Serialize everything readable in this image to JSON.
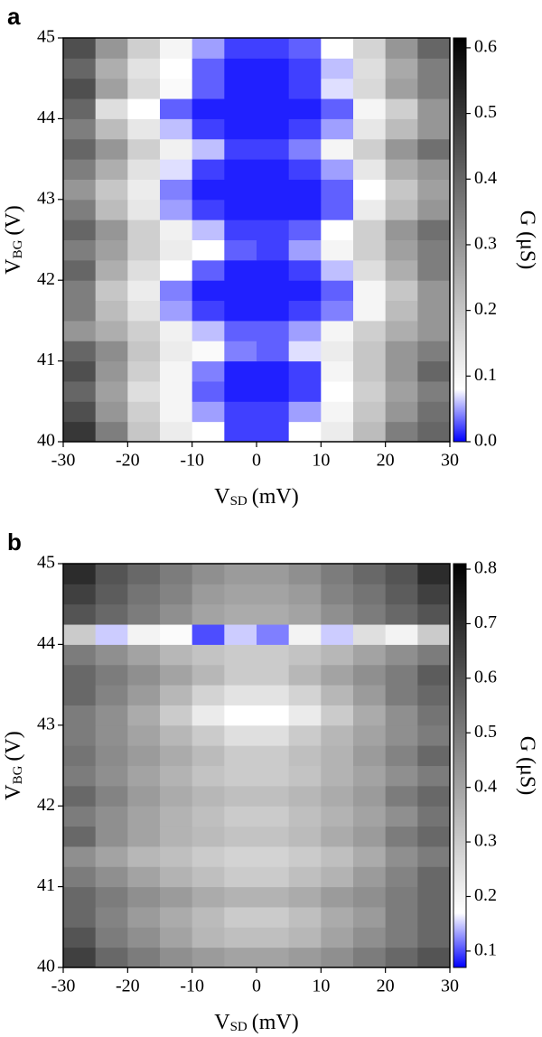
{
  "chart_data": [
    {
      "type": "heatmap",
      "label": "a",
      "xlabel": {
        "main": "V",
        "sub": "SD",
        "unit": "(mV)"
      },
      "ylabel": {
        "main": "V",
        "sub": "BG",
        "unit": "(V)"
      },
      "colorbar_label": "G (μS)",
      "xlim": [
        -30,
        30
      ],
      "xticks": [
        -30,
        -20,
        -10,
        0,
        10,
        20,
        30
      ],
      "ylim": [
        40,
        45
      ],
      "yticks": [
        40,
        41,
        42,
        43,
        44,
        45
      ],
      "clim": [
        0,
        0.615
      ],
      "cticks": [
        {
          "value": 0,
          "label": "0.0"
        },
        0.1,
        0.2,
        0.3,
        0.4,
        0.5,
        0.6
      ],
      "colorscale": [
        {
          "value": 0,
          "color": "#0000ff"
        },
        {
          "value": 0.08,
          "color": "#ffffff"
        },
        {
          "value": 0.615,
          "color": "#000000"
        }
      ],
      "z": [
        [
          0.5,
          0.35,
          0.2,
          0.12,
          0.08,
          0.02,
          0.02,
          0.08,
          0.12,
          0.22,
          0.35,
          0.4
        ],
        [
          0.45,
          0.3,
          0.18,
          0.1,
          0.05,
          0.02,
          0.02,
          0.05,
          0.1,
          0.2,
          0.3,
          0.38
        ],
        [
          0.4,
          0.28,
          0.15,
          0.1,
          0.03,
          0.01,
          0.01,
          0.02,
          0.08,
          0.18,
          0.28,
          0.35
        ],
        [
          0.45,
          0.3,
          0.18,
          0.1,
          0.04,
          0.01,
          0.01,
          0.02,
          0.1,
          0.2,
          0.3,
          0.4
        ],
        [
          0.4,
          0.32,
          0.2,
          0.12,
          0.09,
          0.04,
          0.03,
          0.07,
          0.12,
          0.2,
          0.3,
          0.35
        ],
        [
          0.3,
          0.25,
          0.18,
          0.11,
          0.06,
          0.03,
          0.03,
          0.05,
          0.1,
          0.18,
          0.25,
          0.3
        ],
        [
          0.35,
          0.22,
          0.14,
          0.05,
          0.02,
          0.01,
          0.01,
          0.02,
          0.04,
          0.1,
          0.22,
          0.3
        ],
        [
          0.35,
          0.2,
          0.12,
          0.04,
          0.01,
          0.01,
          0.01,
          0.01,
          0.03,
          0.1,
          0.2,
          0.3
        ],
        [
          0.4,
          0.25,
          0.15,
          0.08,
          0.03,
          0.01,
          0.01,
          0.02,
          0.06,
          0.15,
          0.25,
          0.35
        ],
        [
          0.35,
          0.28,
          0.18,
          0.12,
          0.08,
          0.03,
          0.02,
          0.05,
          0.1,
          0.18,
          0.28,
          0.35
        ],
        [
          0.4,
          0.3,
          0.18,
          0.11,
          0.06,
          0.02,
          0.02,
          0.03,
          0.08,
          0.18,
          0.3,
          0.38
        ],
        [
          0.35,
          0.22,
          0.13,
          0.05,
          0.02,
          0.01,
          0.01,
          0.01,
          0.03,
          0.12,
          0.22,
          0.3
        ],
        [
          0.3,
          0.2,
          0.12,
          0.04,
          0.01,
          0.01,
          0.01,
          0.01,
          0.03,
          0.08,
          0.2,
          0.28
        ],
        [
          0.35,
          0.25,
          0.14,
          0.07,
          0.02,
          0.01,
          0.01,
          0.02,
          0.05,
          0.13,
          0.25,
          0.3
        ],
        [
          0.4,
          0.3,
          0.18,
          0.11,
          0.06,
          0.02,
          0.02,
          0.04,
          0.1,
          0.18,
          0.3,
          0.38
        ],
        [
          0.35,
          0.22,
          0.13,
          0.06,
          0.02,
          0.01,
          0.01,
          0.02,
          0.05,
          0.13,
          0.22,
          0.3
        ],
        [
          0.4,
          0.15,
          0.08,
          0.03,
          0.01,
          0.01,
          0.01,
          0.01,
          0.03,
          0.1,
          0.18,
          0.3
        ],
        [
          0.45,
          0.28,
          0.16,
          0.09,
          0.03,
          0.01,
          0.01,
          0.02,
          0.07,
          0.16,
          0.28,
          0.35
        ],
        [
          0.4,
          0.25,
          0.14,
          0.08,
          0.03,
          0.01,
          0.01,
          0.02,
          0.06,
          0.15,
          0.26,
          0.35
        ],
        [
          0.45,
          0.3,
          0.18,
          0.1,
          0.05,
          0.02,
          0.02,
          0.03,
          0.08,
          0.17,
          0.3,
          0.4
        ]
      ]
    },
    {
      "type": "heatmap",
      "label": "b",
      "xlabel": {
        "main": "V",
        "sub": "SD",
        "unit": "(mV)"
      },
      "ylabel": {
        "main": "V",
        "sub": "BG",
        "unit": "(V)"
      },
      "colorbar_label": "G (μS)",
      "xlim": [
        -30,
        30
      ],
      "xticks": [
        -30,
        -20,
        -10,
        0,
        10,
        20,
        30
      ],
      "ylim": [
        40,
        45
      ],
      "yticks": [
        40,
        41,
        42,
        43,
        44,
        45
      ],
      "clim": [
        0.07,
        0.81
      ],
      "cticks": [
        0.1,
        0.2,
        0.3,
        0.4,
        0.5,
        0.6,
        0.7,
        0.8
      ],
      "colorscale": [
        {
          "value": 0.07,
          "color": "#0000ff"
        },
        {
          "value": 0.17,
          "color": "#ffffff"
        },
        {
          "value": 0.81,
          "color": "#000000"
        }
      ],
      "z": [
        [
          0.65,
          0.55,
          0.5,
          0.45,
          0.42,
          0.4,
          0.4,
          0.42,
          0.45,
          0.5,
          0.55,
          0.6
        ],
        [
          0.6,
          0.5,
          0.45,
          0.4,
          0.35,
          0.33,
          0.33,
          0.35,
          0.4,
          0.45,
          0.5,
          0.55
        ],
        [
          0.55,
          0.48,
          0.42,
          0.38,
          0.34,
          0.3,
          0.3,
          0.33,
          0.38,
          0.42,
          0.5,
          0.55
        ],
        [
          0.55,
          0.5,
          0.45,
          0.42,
          0.38,
          0.36,
          0.36,
          0.38,
          0.42,
          0.45,
          0.5,
          0.55
        ],
        [
          0.5,
          0.45,
          0.4,
          0.36,
          0.33,
          0.3,
          0.3,
          0.33,
          0.36,
          0.42,
          0.48,
          0.55
        ],
        [
          0.45,
          0.4,
          0.35,
          0.33,
          0.3,
          0.28,
          0.28,
          0.3,
          0.33,
          0.38,
          0.45,
          0.5
        ],
        [
          0.55,
          0.45,
          0.4,
          0.36,
          0.34,
          0.32,
          0.32,
          0.34,
          0.38,
          0.42,
          0.5,
          0.55
        ],
        [
          0.5,
          0.45,
          0.4,
          0.36,
          0.33,
          0.3,
          0.3,
          0.33,
          0.36,
          0.4,
          0.45,
          0.52
        ],
        [
          0.55,
          0.48,
          0.42,
          0.38,
          0.35,
          0.33,
          0.33,
          0.35,
          0.38,
          0.42,
          0.5,
          0.55
        ],
        [
          0.5,
          0.45,
          0.4,
          0.36,
          0.32,
          0.3,
          0.3,
          0.32,
          0.36,
          0.4,
          0.45,
          0.5
        ],
        [
          0.52,
          0.46,
          0.42,
          0.38,
          0.34,
          0.3,
          0.3,
          0.33,
          0.36,
          0.42,
          0.48,
          0.55
        ],
        [
          0.5,
          0.45,
          0.4,
          0.35,
          0.3,
          0.25,
          0.25,
          0.3,
          0.35,
          0.4,
          0.45,
          0.5
        ],
        [
          0.5,
          0.45,
          0.38,
          0.3,
          0.22,
          0.17,
          0.17,
          0.22,
          0.3,
          0.38,
          0.45,
          0.52
        ],
        [
          0.55,
          0.48,
          0.42,
          0.35,
          0.28,
          0.24,
          0.24,
          0.28,
          0.35,
          0.42,
          0.5,
          0.55
        ],
        [
          0.55,
          0.5,
          0.45,
          0.4,
          0.35,
          0.3,
          0.3,
          0.35,
          0.4,
          0.45,
          0.5,
          0.58
        ],
        [
          0.5,
          0.45,
          0.4,
          0.35,
          0.32,
          0.3,
          0.3,
          0.32,
          0.35,
          0.4,
          0.45,
          0.5
        ],
        [
          0.3,
          0.15,
          0.2,
          0.18,
          0.1,
          0.15,
          0.12,
          0.2,
          0.15,
          0.25,
          0.2,
          0.3
        ],
        [
          0.6,
          0.55,
          0.5,
          0.45,
          0.4,
          0.38,
          0.38,
          0.4,
          0.45,
          0.5,
          0.55,
          0.6
        ],
        [
          0.65,
          0.58,
          0.52,
          0.48,
          0.42,
          0.4,
          0.4,
          0.42,
          0.48,
          0.52,
          0.58,
          0.65
        ],
        [
          0.7,
          0.6,
          0.55,
          0.5,
          0.45,
          0.42,
          0.42,
          0.45,
          0.5,
          0.55,
          0.6,
          0.7
        ]
      ]
    }
  ]
}
